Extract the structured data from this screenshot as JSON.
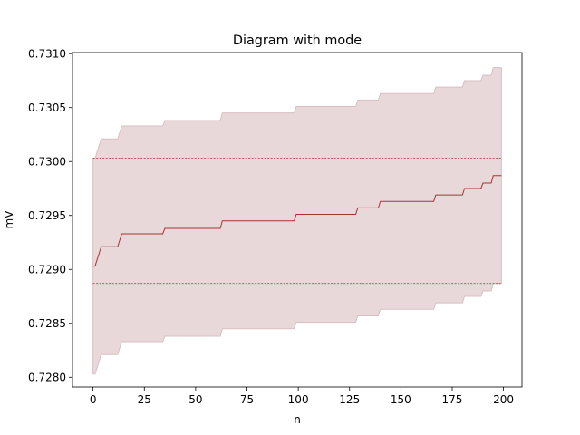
{
  "chart_data": {
    "type": "line",
    "title": "Diagram with mode",
    "xlabel": "n",
    "ylabel": "mV",
    "xlim": [
      -10,
      209
    ],
    "ylim": [
      0.72791,
      0.73101
    ],
    "grid": false,
    "legend": "none",
    "x_ticks": [
      0,
      25,
      50,
      75,
      100,
      125,
      150,
      175,
      200
    ],
    "x_tick_labels": [
      "0",
      "25",
      "50",
      "75",
      "100",
      "125",
      "150",
      "175",
      "200"
    ],
    "y_ticks": [
      0.728,
      0.7285,
      0.729,
      0.7295,
      0.73,
      0.7305,
      0.731
    ],
    "y_tick_labels": [
      "0.7280",
      "0.7285",
      "0.7290",
      "0.7295",
      "0.7300",
      "0.7305",
      "0.7310"
    ],
    "series": [
      {
        "role": "mean",
        "step_points": [
          [
            0,
            0.72903
          ],
          [
            1,
            0.72903
          ],
          [
            4,
            0.72921
          ],
          [
            12,
            0.72921
          ],
          [
            14,
            0.72933
          ],
          [
            34,
            0.72933
          ],
          [
            35,
            0.72938
          ],
          [
            62,
            0.72938
          ],
          [
            63,
            0.72945
          ],
          [
            98,
            0.72945
          ],
          [
            99,
            0.72951
          ],
          [
            128,
            0.72951
          ],
          [
            129,
            0.72957
          ],
          [
            139,
            0.72957
          ],
          [
            140,
            0.72963
          ],
          [
            166,
            0.72963
          ],
          [
            167,
            0.72969
          ],
          [
            180,
            0.72969
          ],
          [
            181,
            0.72975
          ],
          [
            189,
            0.72975
          ],
          [
            190,
            0.7298
          ],
          [
            194,
            0.7298
          ],
          [
            195,
            0.72987
          ],
          [
            199,
            0.72987
          ]
        ]
      },
      {
        "role": "band",
        "lower": [
          [
            0,
            0.72803
          ],
          [
            1,
            0.72803
          ],
          [
            4,
            0.72821
          ],
          [
            12,
            0.72821
          ],
          [
            14,
            0.72833
          ],
          [
            34,
            0.72833
          ],
          [
            35,
            0.72838
          ],
          [
            62,
            0.72838
          ],
          [
            63,
            0.72845
          ],
          [
            98,
            0.72845
          ],
          [
            99,
            0.72851
          ],
          [
            128,
            0.72851
          ],
          [
            129,
            0.72857
          ],
          [
            139,
            0.72857
          ],
          [
            140,
            0.72863
          ],
          [
            166,
            0.72863
          ],
          [
            167,
            0.72869
          ],
          [
            180,
            0.72869
          ],
          [
            181,
            0.72875
          ],
          [
            189,
            0.72875
          ],
          [
            190,
            0.7288
          ],
          [
            194,
            0.7288
          ],
          [
            195,
            0.72887
          ],
          [
            199,
            0.72887
          ]
        ],
        "upper": [
          [
            0,
            0.73003
          ],
          [
            1,
            0.73003
          ],
          [
            4,
            0.73021
          ],
          [
            12,
            0.73021
          ],
          [
            14,
            0.73033
          ],
          [
            34,
            0.73033
          ],
          [
            35,
            0.73038
          ],
          [
            62,
            0.73038
          ],
          [
            63,
            0.73045
          ],
          [
            98,
            0.73045
          ],
          [
            99,
            0.73051
          ],
          [
            128,
            0.73051
          ],
          [
            129,
            0.73057
          ],
          [
            139,
            0.73057
          ],
          [
            140,
            0.73063
          ],
          [
            166,
            0.73063
          ],
          [
            167,
            0.73069
          ],
          [
            180,
            0.73069
          ],
          [
            181,
            0.73075
          ],
          [
            189,
            0.73075
          ],
          [
            190,
            0.7308
          ],
          [
            194,
            0.7308
          ],
          [
            195,
            0.73087
          ],
          [
            199,
            0.73087
          ]
        ]
      },
      {
        "role": "reference-upper",
        "style": "dashed",
        "x": [
          0,
          199
        ],
        "y": 0.73003
      },
      {
        "role": "reference-lower",
        "style": "dashed",
        "x": [
          0,
          199
        ],
        "y": 0.72887
      }
    ],
    "colors": {
      "line": "#a83232",
      "band": "#e8d8da",
      "band_edge": "#d9bfc2",
      "axis": "#000000"
    }
  }
}
